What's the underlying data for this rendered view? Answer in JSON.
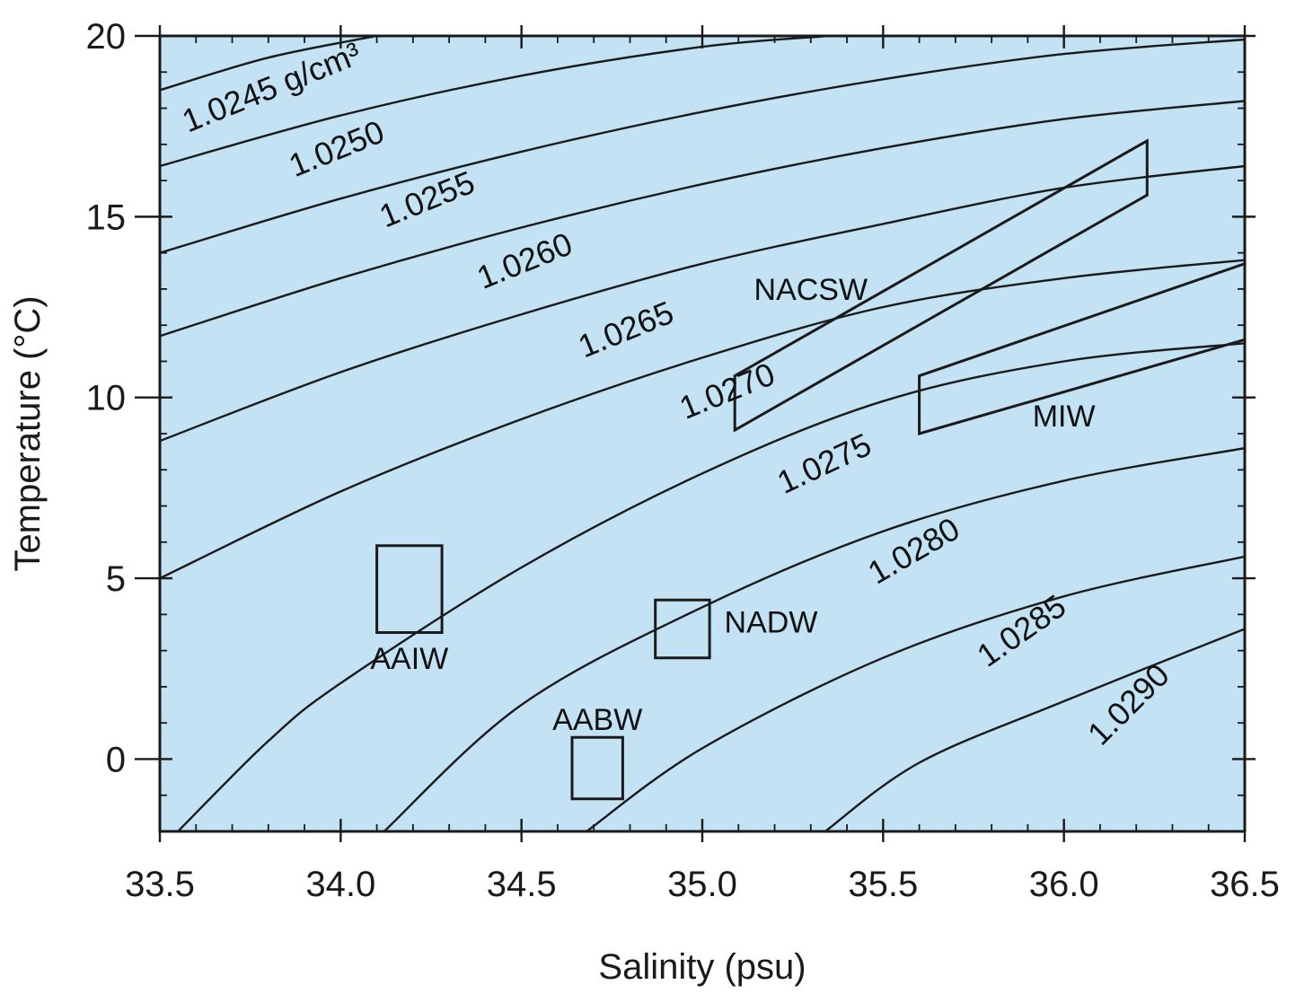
{
  "chart_data": {
    "type": "line",
    "title": "",
    "xlabel": "Salinity (psu)",
    "ylabel": "Temperature (°C)",
    "xlim": [
      33.5,
      36.5
    ],
    "ylim": [
      -2,
      20
    ],
    "grid": false,
    "background_color": "#c3e2f3",
    "x_ticks": [
      {
        "value": 33.5,
        "label": "33.5"
      },
      {
        "value": 34.0,
        "label": "34.0"
      },
      {
        "value": 34.5,
        "label": "34.5"
      },
      {
        "value": 35.0,
        "label": "35.0"
      },
      {
        "value": 35.5,
        "label": "35.5"
      },
      {
        "value": 36.0,
        "label": "36.0"
      },
      {
        "value": 36.5,
        "label": "36.5"
      }
    ],
    "y_ticks": [
      {
        "value": 0,
        "label": "0"
      },
      {
        "value": 5,
        "label": "5"
      },
      {
        "value": 10,
        "label": "10"
      },
      {
        "value": 15,
        "label": "15"
      },
      {
        "value": 20,
        "label": "20"
      }
    ],
    "density_contours": [
      {
        "label": "1.0245 g/cm³",
        "points": [
          [
            33.5,
            18.5
          ],
          [
            33.8,
            19.4
          ],
          [
            34.1,
            20.0
          ]
        ],
        "label_at": [
          33.82,
          18.3
        ],
        "label_angle": -22
      },
      {
        "label": "1.0250",
        "points": [
          [
            33.5,
            16.4
          ],
          [
            34.0,
            17.8
          ],
          [
            34.5,
            18.9
          ],
          [
            35.0,
            19.7
          ],
          [
            35.35,
            20.0
          ]
        ],
        "label_at": [
          34.0,
          16.6
        ],
        "label_angle": -22
      },
      {
        "label": "1.0255",
        "points": [
          [
            33.5,
            14.0
          ],
          [
            34.0,
            15.5
          ],
          [
            34.5,
            16.8
          ],
          [
            35.0,
            17.9
          ],
          [
            35.5,
            18.8
          ],
          [
            36.0,
            19.5
          ],
          [
            36.5,
            19.9
          ]
        ],
        "label_at": [
          34.25,
          15.2
        ],
        "label_angle": -22
      },
      {
        "label": "1.0260",
        "points": [
          [
            33.5,
            11.7
          ],
          [
            34.0,
            13.3
          ],
          [
            34.5,
            14.7
          ],
          [
            35.0,
            15.9
          ],
          [
            35.5,
            16.9
          ],
          [
            36.0,
            17.7
          ],
          [
            36.5,
            18.2
          ]
        ],
        "label_at": [
          34.52,
          13.5
        ],
        "label_angle": -22
      },
      {
        "label": "1.0265",
        "points": [
          [
            33.5,
            8.8
          ],
          [
            34.0,
            10.7
          ],
          [
            34.5,
            12.3
          ],
          [
            35.0,
            13.7
          ],
          [
            35.5,
            14.8
          ],
          [
            36.0,
            15.8
          ],
          [
            36.5,
            16.4
          ]
        ],
        "label_at": [
          34.8,
          11.6
        ],
        "label_angle": -22
      },
      {
        "label": "1.0270",
        "points": [
          [
            33.5,
            5.0
          ],
          [
            34.0,
            7.4
          ],
          [
            34.5,
            9.4
          ],
          [
            35.0,
            11.1
          ],
          [
            35.5,
            12.5
          ],
          [
            36.0,
            13.3
          ],
          [
            36.5,
            13.8
          ]
        ],
        "label_at": [
          35.08,
          9.9
        ],
        "label_angle": -22
      },
      {
        "label": "1.0275",
        "points": [
          [
            33.55,
            -2.0
          ],
          [
            33.8,
            0.5
          ],
          [
            34.0,
            2.1
          ],
          [
            34.5,
            5.3
          ],
          [
            35.0,
            7.9
          ],
          [
            35.5,
            9.9
          ],
          [
            36.0,
            11.0
          ],
          [
            36.5,
            11.5
          ]
        ],
        "label_at": [
          35.35,
          7.9
        ],
        "label_angle": -25
      },
      {
        "label": "1.0280",
        "points": [
          [
            34.12,
            -2.0
          ],
          [
            34.5,
            1.5
          ],
          [
            35.0,
            4.2
          ],
          [
            35.5,
            6.3
          ],
          [
            36.0,
            7.7
          ],
          [
            36.5,
            8.6
          ]
        ],
        "label_at": [
          35.6,
          5.5
        ],
        "label_angle": -30
      },
      {
        "label": "1.0285",
        "points": [
          [
            34.68,
            -2.0
          ],
          [
            35.0,
            0.3
          ],
          [
            35.5,
            2.8
          ],
          [
            36.0,
            4.5
          ],
          [
            36.5,
            5.6
          ]
        ],
        "label_at": [
          35.9,
          3.3
        ],
        "label_angle": -35
      },
      {
        "label": "1.0290",
        "points": [
          [
            35.34,
            -2.0
          ],
          [
            35.6,
            -0.1
          ],
          [
            36.0,
            1.6
          ],
          [
            36.5,
            3.6
          ]
        ],
        "label_at": [
          36.2,
          1.3
        ],
        "label_angle": -45
      }
    ],
    "water_masses": [
      {
        "name": "AAIW",
        "polygon": [
          [
            34.1,
            5.9
          ],
          [
            34.28,
            5.9
          ],
          [
            34.28,
            3.5
          ],
          [
            34.1,
            3.5
          ]
        ],
        "label_at": [
          34.19,
          2.5
        ]
      },
      {
        "name": "NADW",
        "polygon": [
          [
            34.87,
            4.4
          ],
          [
            35.02,
            4.4
          ],
          [
            35.02,
            2.8
          ],
          [
            34.87,
            2.8
          ]
        ],
        "label_at": [
          35.19,
          3.5
        ]
      },
      {
        "name": "AABW",
        "polygon": [
          [
            34.64,
            0.6
          ],
          [
            34.78,
            0.6
          ],
          [
            34.78,
            -1.1
          ],
          [
            34.64,
            -1.1
          ]
        ],
        "label_at": [
          34.71,
          0.8
        ]
      },
      {
        "name": "NACSW",
        "polygon": [
          [
            35.09,
            10.6
          ],
          [
            36.23,
            17.1
          ],
          [
            36.23,
            15.6
          ],
          [
            35.09,
            9.1
          ]
        ],
        "label_at": [
          35.3,
          12.7
        ]
      },
      {
        "name": "MIW",
        "polygon": [
          [
            35.6,
            10.6
          ],
          [
            36.5,
            13.7
          ],
          [
            36.5,
            11.6
          ],
          [
            35.6,
            9.0
          ]
        ],
        "label_at": [
          36.0,
          9.2
        ]
      }
    ]
  }
}
